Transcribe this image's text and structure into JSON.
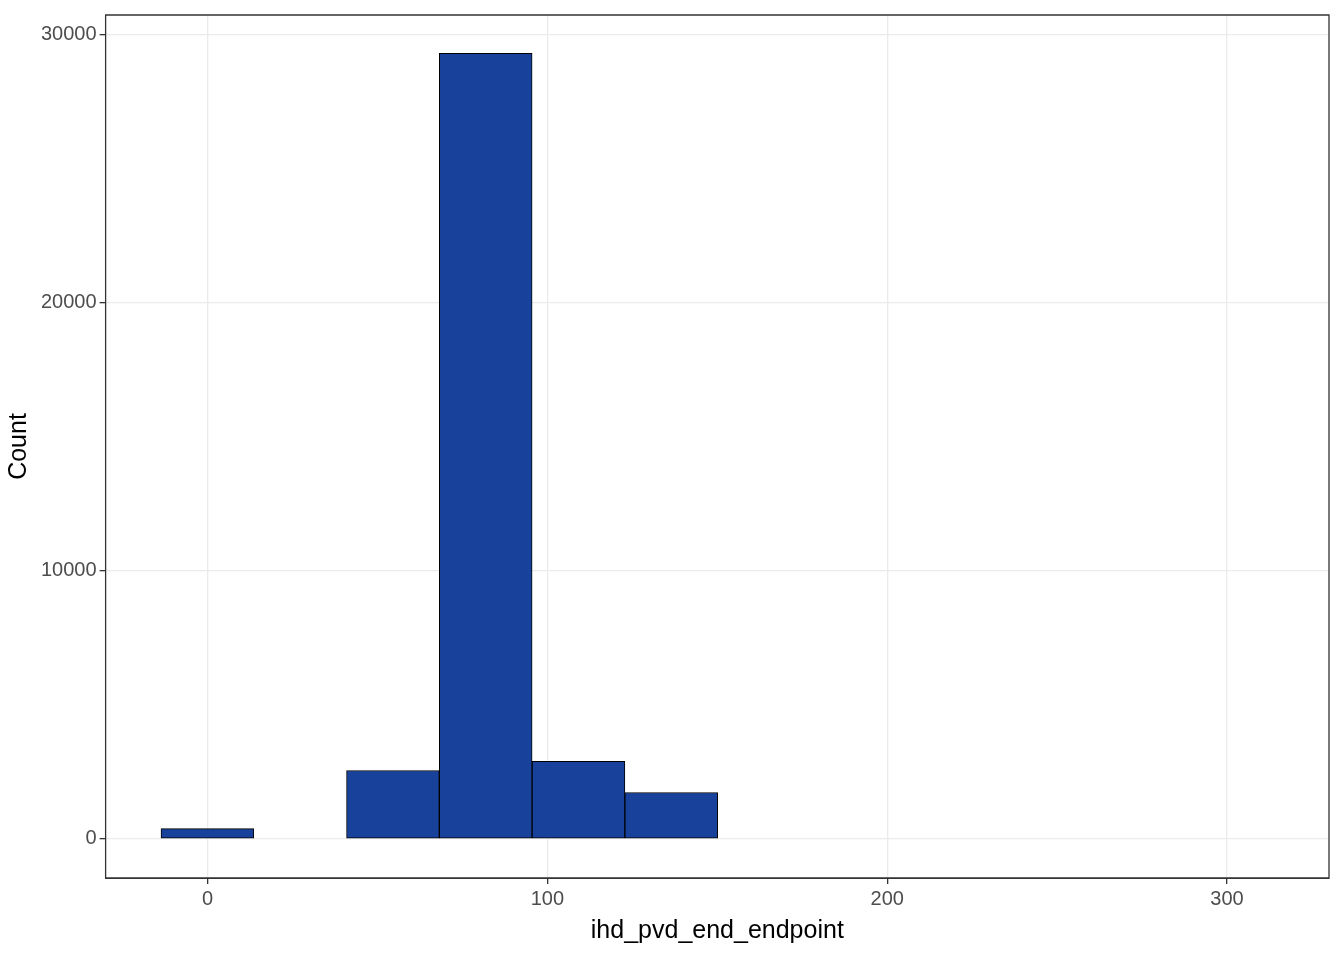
{
  "chart_data": {
    "type": "histogram",
    "xlabel": "ihd_pvd_end_endpoint",
    "ylabel": "Count",
    "bins": [
      -13.7,
      13.6,
      40.9,
      68.2,
      95.5,
      122.8,
      150.1,
      177.4,
      204.7,
      232,
      259.3,
      286.6,
      313.9
    ],
    "values": [
      380,
      0,
      2550,
      29300,
      2890,
      1730,
      0,
      0,
      0,
      0,
      0,
      0
    ],
    "color": "#17419a",
    "xlim": [
      -30,
      330
    ],
    "xticks": [
      0,
      100,
      200,
      300
    ],
    "ylim": [
      -1460,
      30730
    ],
    "yticks": [
      0,
      10000,
      20000,
      30000
    ],
    "grid": true
  }
}
